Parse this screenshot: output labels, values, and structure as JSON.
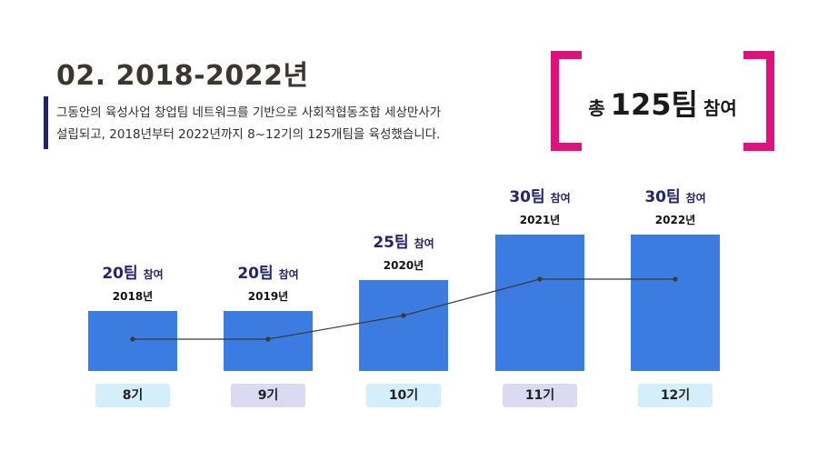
{
  "header": {
    "title": "02. 2018-2022년",
    "description_lines": [
      "그동안의 육성사업 창업팀 네트워크를 기반으로 사회적협동조합 세상만사가",
      "설립되고, 2018년부터 2022년까지 8~12기의 125개팀을 육성했습니다."
    ]
  },
  "total_badge": {
    "prefix": "총",
    "number": "125팀",
    "suffix": "참여",
    "bracket_color": "#e0107e"
  },
  "colors": {
    "bar": "#3c7be0",
    "line": "#3a3a3a",
    "label_main": "#25246b",
    "cohort_a": "#d4effa",
    "cohort_b": "#dcdaf2"
  },
  "chart_data": {
    "type": "bar",
    "categories": [
      "2018년",
      "2019년",
      "2020년",
      "2021년",
      "2022년"
    ],
    "values": [
      20,
      20,
      25,
      30,
      30
    ],
    "bar_labels": [
      {
        "num": "20팀",
        "word": "참여"
      },
      {
        "num": "20팀",
        "word": "참여"
      },
      {
        "num": "25팀",
        "word": "참여"
      },
      {
        "num": "30팀",
        "word": "참여"
      },
      {
        "num": "30팀",
        "word": "참여"
      }
    ],
    "cohorts": [
      "8기",
      "9기",
      "10기",
      "11기",
      "12기"
    ],
    "line_values": [
      8,
      9,
      10,
      11,
      12
    ],
    "ylim": [
      0,
      30
    ],
    "grid": false,
    "legend": "none"
  }
}
